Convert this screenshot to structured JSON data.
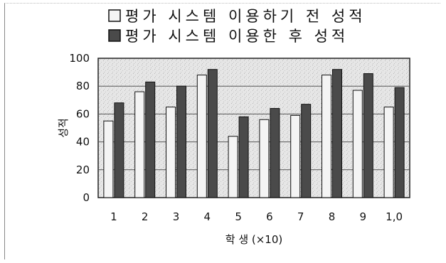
{
  "chart_data": {
    "type": "bar",
    "categories": [
      "1",
      "2",
      "3",
      "4",
      "5",
      "6",
      "7",
      "8",
      "9",
      "1,0"
    ],
    "series": [
      {
        "name": "평가 시스템 이용하기 전 성적",
        "values": [
          55,
          76,
          65,
          88,
          44,
          56,
          59,
          88,
          77,
          65
        ]
      },
      {
        "name": "평가 시스템 이용한 후 성적",
        "values": [
          68,
          83,
          80,
          92,
          58,
          64,
          67,
          92,
          89,
          79
        ]
      }
    ],
    "title": "",
    "xlabel": "학 생 (×10)",
    "ylabel": "성적",
    "ylim": [
      0,
      100
    ],
    "yticks": [
      "0",
      "20",
      "40",
      "60",
      "80",
      "100"
    ],
    "grid": true,
    "legend_position": "top",
    "colors": {
      "before": "#f4f4f4",
      "after": "#4a4a4a",
      "plot_background": "#e2e2e2",
      "grid": "#555555"
    }
  }
}
